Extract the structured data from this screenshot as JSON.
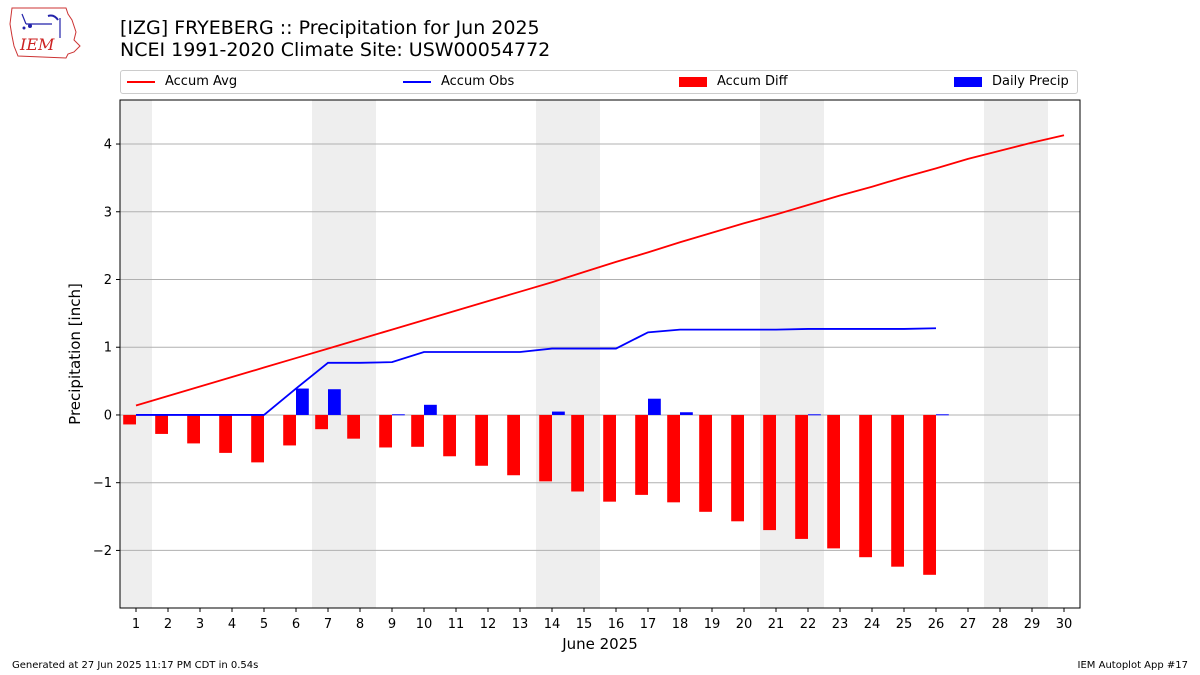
{
  "header": {
    "title_line1": "[IZG] FRYEBERG :: Precipitation for Jun 2025",
    "title_line2": "NCEI 1991-2020 Climate Site: USW00054772"
  },
  "logo": {
    "text": "IEM",
    "icon": "iowa-state-map-logo"
  },
  "legend": [
    {
      "label": "Accum Avg",
      "kind": "line",
      "color": "#ff0000"
    },
    {
      "label": "Accum Obs",
      "kind": "line",
      "color": "#0000ff"
    },
    {
      "label": "Accum Diff",
      "kind": "patch",
      "color": "#ff0000"
    },
    {
      "label": "Daily Precip",
      "kind": "patch",
      "color": "#0000ff"
    }
  ],
  "footer": {
    "left": "Generated at 27 Jun 2025 11:17 PM CDT in 0.54s",
    "right": "IEM Autoplot App #17"
  },
  "chart_data": {
    "type": "bar",
    "xlabel": "June 2025",
    "ylabel": "Precipitation [inch]",
    "xlim": [
      0.5,
      30.5
    ],
    "ylim": [
      -2.85,
      4.65
    ],
    "yticks": [
      -2,
      -1,
      0,
      1,
      2,
      3,
      4
    ],
    "ytick_labels": [
      "−2",
      "−1",
      "0",
      "1",
      "2",
      "3",
      "4"
    ],
    "grid": "horizontal",
    "legend_position": "top",
    "weekend_shading_days": [
      [
        1,
        1
      ],
      [
        7,
        8
      ],
      [
        14,
        15
      ],
      [
        21,
        22
      ],
      [
        28,
        29
      ]
    ],
    "series": [
      {
        "name": "Accum Avg",
        "kind": "line",
        "color": "#ff0000",
        "x": [
          1,
          2,
          3,
          4,
          5,
          6,
          7,
          8,
          9,
          10,
          11,
          12,
          13,
          14,
          15,
          16,
          17,
          18,
          19,
          20,
          21,
          22,
          23,
          24,
          25,
          26,
          27,
          28,
          29,
          30
        ],
        "values": [
          0.14,
          0.28,
          0.42,
          0.56,
          0.7,
          0.84,
          0.98,
          1.12,
          1.26,
          1.4,
          1.54,
          1.68,
          1.82,
          1.96,
          2.11,
          2.26,
          2.4,
          2.55,
          2.69,
          2.83,
          2.96,
          3.1,
          3.24,
          3.37,
          3.51,
          3.64,
          3.78,
          3.9,
          4.02,
          4.13
        ]
      },
      {
        "name": "Accum Obs",
        "kind": "line",
        "color": "#0000ff",
        "x": [
          1,
          2,
          3,
          4,
          5,
          6,
          7,
          8,
          9,
          10,
          11,
          12,
          13,
          14,
          15,
          16,
          17,
          18,
          19,
          20,
          21,
          22,
          23,
          24,
          25,
          26
        ],
        "values": [
          0,
          0,
          0,
          0,
          0,
          0.39,
          0.77,
          0.77,
          0.78,
          0.93,
          0.93,
          0.93,
          0.93,
          0.98,
          0.98,
          0.98,
          1.22,
          1.26,
          1.26,
          1.26,
          1.26,
          1.27,
          1.27,
          1.27,
          1.27,
          1.28
        ]
      },
      {
        "name": "Accum Diff",
        "kind": "bar",
        "color": "#ff0000",
        "offset": -0.2,
        "x": [
          1,
          2,
          3,
          4,
          5,
          6,
          7,
          8,
          9,
          10,
          11,
          12,
          13,
          14,
          15,
          16,
          17,
          18,
          19,
          20,
          21,
          22,
          23,
          24,
          25,
          26
        ],
        "values": [
          -0.14,
          -0.28,
          -0.42,
          -0.56,
          -0.7,
          -0.45,
          -0.21,
          -0.35,
          -0.48,
          -0.47,
          -0.61,
          -0.75,
          -0.89,
          -0.98,
          -1.13,
          -1.28,
          -1.18,
          -1.29,
          -1.43,
          -1.57,
          -1.7,
          -1.83,
          -1.97,
          -2.1,
          -2.24,
          -2.36
        ]
      },
      {
        "name": "Daily Precip",
        "kind": "bar",
        "color": "#0000ff",
        "offset": 0.2,
        "x": [
          1,
          2,
          3,
          4,
          5,
          6,
          7,
          8,
          9,
          10,
          11,
          12,
          13,
          14,
          15,
          16,
          17,
          18,
          19,
          20,
          21,
          22,
          23,
          24,
          25,
          26
        ],
        "values": [
          0,
          0,
          0,
          0,
          0,
          0.39,
          0.38,
          0,
          0.01,
          0.15,
          0,
          0,
          0,
          0.05,
          0,
          0,
          0.24,
          0.04,
          0,
          0,
          0,
          0.01,
          0,
          0,
          0,
          0.01
        ]
      }
    ]
  }
}
